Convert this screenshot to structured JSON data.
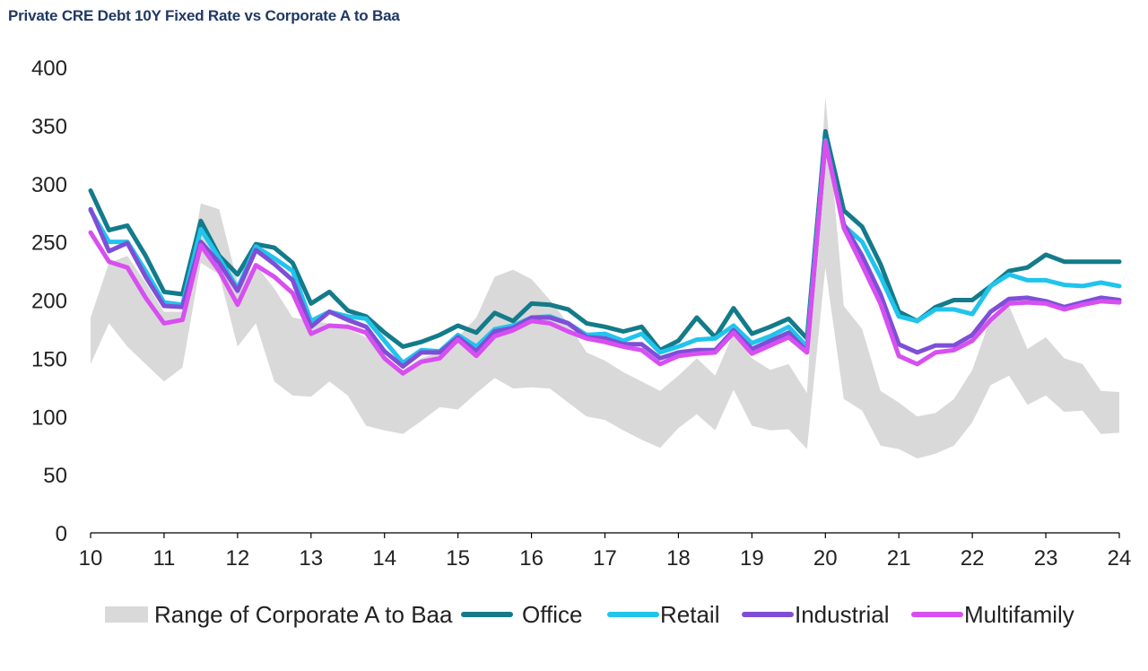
{
  "title": "Private CRE Debt 10Y Fixed Rate vs Corporate A to Baa",
  "chart_data": {
    "type": "line",
    "xlim": [
      10,
      24
    ],
    "ylim": [
      0,
      400
    ],
    "y_ticks": [
      0,
      50,
      100,
      150,
      200,
      250,
      300,
      350,
      400
    ],
    "x_ticks": [
      10,
      11,
      12,
      13,
      14,
      15,
      16,
      17,
      18,
      19,
      20,
      21,
      22,
      23,
      24
    ],
    "x_tick_labels": [
      "10",
      "11",
      "12",
      "13",
      "14",
      "15",
      "16",
      "17",
      "18",
      "19",
      "20",
      "21",
      "22",
      "23",
      "24"
    ],
    "y_tick_labels": [
      "0",
      "50",
      "100",
      "150",
      "200",
      "250",
      "300",
      "350",
      "400"
    ],
    "x": [
      10,
      10.25,
      10.5,
      10.75,
      11,
      11.25,
      11.5,
      11.75,
      12,
      12.25,
      12.5,
      12.75,
      13,
      13.25,
      13.5,
      13.75,
      14,
      14.25,
      14.5,
      14.75,
      15,
      15.25,
      15.5,
      15.75,
      16,
      16.25,
      16.5,
      16.75,
      17,
      17.25,
      17.5,
      17.75,
      18,
      18.25,
      18.5,
      18.75,
      19,
      19.25,
      19.5,
      19.75,
      20,
      20.25,
      20.5,
      20.75,
      21,
      21.25,
      21.5,
      21.75,
      22,
      22.25,
      22.5,
      22.75,
      23,
      23.25,
      23.5,
      23.75,
      24
    ],
    "range": {
      "name": "Range of Corporate A to Baa",
      "color": "#d9d9d9",
      "low": [
        145,
        180,
        160,
        145,
        130,
        142,
        232,
        222,
        160,
        180,
        130,
        118,
        117,
        130,
        118,
        92,
        88,
        85,
        96,
        108,
        106,
        120,
        133,
        124,
        125,
        124,
        112,
        100,
        97,
        88,
        80,
        73,
        90,
        102,
        88,
        123,
        92,
        88,
        89,
        72,
        228,
        115,
        105,
        75,
        72,
        64,
        68,
        75,
        95,
        127,
        135,
        110,
        118,
        104,
        105,
        85,
        86
      ],
      "high": [
        185,
        232,
        238,
        215,
        190,
        190,
        283,
        278,
        215,
        230,
        210,
        185,
        182,
        180,
        175,
        168,
        150,
        140,
        150,
        155,
        168,
        185,
        220,
        226,
        218,
        200,
        180,
        155,
        148,
        138,
        130,
        122,
        135,
        150,
        135,
        172,
        150,
        140,
        145,
        120,
        375,
        195,
        175,
        122,
        112,
        100,
        103,
        115,
        140,
        185,
        195,
        158,
        168,
        150,
        145,
        122,
        121
      ]
    },
    "series": [
      {
        "name": "Office",
        "color": "#137b8a",
        "values": [
          294,
          260,
          264,
          238,
          207,
          205,
          268,
          238,
          222,
          248,
          245,
          232,
          197,
          207,
          191,
          186,
          172,
          160,
          164,
          170,
          178,
          172,
          189,
          182,
          197,
          196,
          192,
          180,
          177,
          173,
          177,
          157,
          165,
          185,
          168,
          193,
          171,
          177,
          184,
          167,
          345,
          277,
          263,
          231,
          190,
          182,
          194,
          200,
          200,
          212,
          225,
          228,
          239,
          233,
          233,
          233,
          233
        ]
      },
      {
        "name": "Retail",
        "color": "#20c4ec",
        "values": [
          277,
          250,
          250,
          225,
          198,
          196,
          261,
          236,
          210,
          246,
          236,
          225,
          182,
          190,
          186,
          184,
          165,
          146,
          157,
          156,
          170,
          160,
          175,
          178,
          185,
          186,
          180,
          170,
          171,
          165,
          171,
          155,
          160,
          166,
          167,
          178,
          163,
          169,
          177,
          160,
          337,
          264,
          250,
          220,
          186,
          182,
          192,
          192,
          188,
          212,
          222,
          217,
          217,
          213,
          212,
          215,
          212
        ]
      },
      {
        "name": "Industrial",
        "color": "#7e4fd6",
        "values": [
          278,
          242,
          249,
          220,
          195,
          194,
          250,
          232,
          208,
          243,
          231,
          217,
          177,
          190,
          183,
          177,
          156,
          143,
          155,
          155,
          168,
          156,
          173,
          176,
          185,
          185,
          180,
          168,
          167,
          162,
          162,
          150,
          155,
          157,
          157,
          174,
          158,
          165,
          172,
          156,
          336,
          265,
          238,
          205,
          162,
          155,
          161,
          161,
          170,
          190,
          201,
          202,
          199,
          194,
          198,
          202,
          200
        ]
      },
      {
        "name": "Multifamily",
        "color": "#d74ff0",
        "values": [
          258,
          233,
          228,
          202,
          180,
          183,
          247,
          225,
          196,
          230,
          220,
          206,
          171,
          178,
          177,
          172,
          150,
          137,
          147,
          150,
          166,
          152,
          169,
          174,
          182,
          180,
          173,
          167,
          164,
          160,
          157,
          145,
          152,
          154,
          155,
          172,
          154,
          161,
          168,
          155,
          336,
          262,
          230,
          197,
          152,
          145,
          155,
          157,
          165,
          183,
          197,
          198,
          197,
          192,
          196,
          199,
          198
        ]
      }
    ]
  }
}
